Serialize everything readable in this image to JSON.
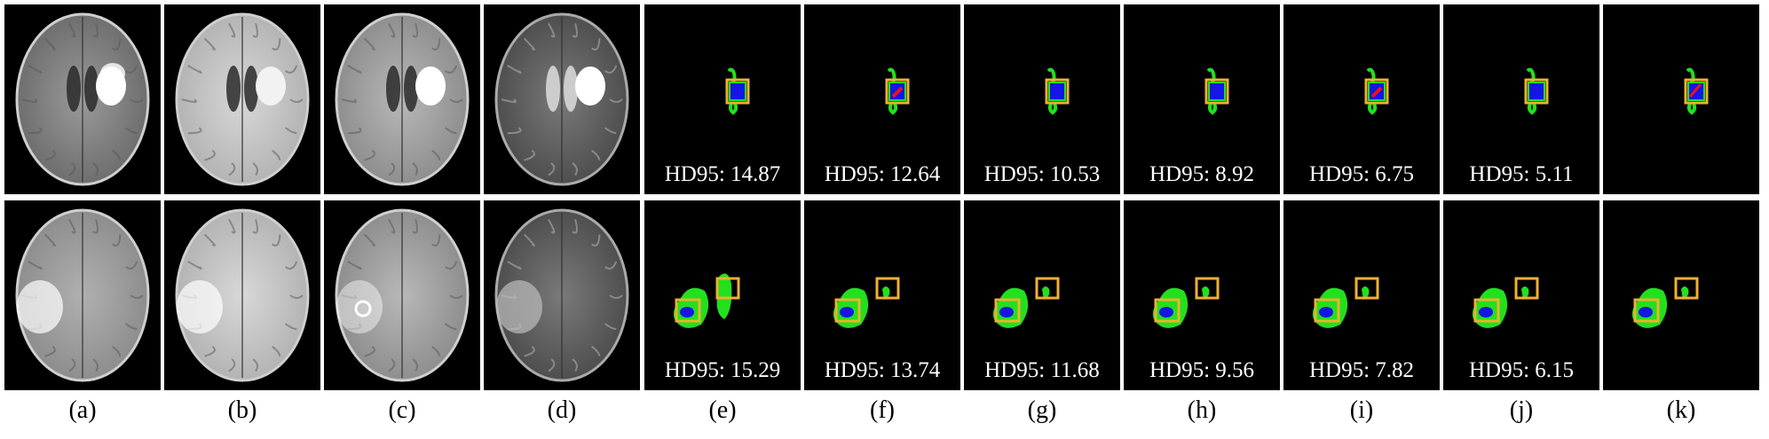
{
  "columns": [
    {
      "label": "(a)",
      "kind": "mri",
      "variant": "flair"
    },
    {
      "label": "(b)",
      "kind": "mri",
      "variant": "t1"
    },
    {
      "label": "(c)",
      "kind": "mri",
      "variant": "t1ce"
    },
    {
      "label": "(d)",
      "kind": "mri",
      "variant": "t2"
    },
    {
      "label": "(e)",
      "kind": "seg",
      "hd95": [
        "HD95: 14.87",
        "HD95: 15.29"
      ]
    },
    {
      "label": "(f)",
      "kind": "seg",
      "hd95": [
        "HD95: 12.64",
        "HD95: 13.74"
      ]
    },
    {
      "label": "(g)",
      "kind": "seg",
      "hd95": [
        "HD95: 10.53",
        "HD95: 11.68"
      ]
    },
    {
      "label": "(h)",
      "kind": "seg",
      "hd95": [
        "HD95: 8.92",
        "HD95: 9.56"
      ]
    },
    {
      "label": "(i)",
      "kind": "seg",
      "hd95": [
        "HD95: 6.75",
        "HD95: 7.82"
      ]
    },
    {
      "label": "(j)",
      "kind": "seg",
      "hd95": [
        "HD95: 5.11",
        "HD95: 6.15"
      ]
    },
    {
      "label": "(k)",
      "kind": "seg",
      "hd95": [
        "",
        ""
      ]
    }
  ],
  "colors": {
    "background": "#000000",
    "whole_tumor": "#22e01e",
    "tumor_core": "#1515e6",
    "enhancing": "#e81414",
    "edema_highlight": "#20c0ff",
    "box": "#f0b030"
  }
}
